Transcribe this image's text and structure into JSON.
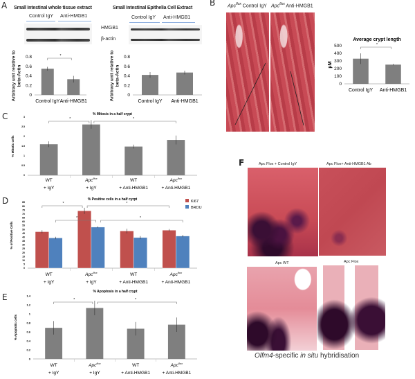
{
  "panels": {
    "A": {
      "label": "A",
      "title_left": "Small Intestinal whole tissue extract",
      "title_right": "Small Intestinal Epithelia Cell Extract",
      "blot_groups": [
        "Control IgY",
        "Anti-HMGB1"
      ],
      "blot_rows": [
        "HMGB1",
        "β-actin"
      ]
    },
    "B": {
      "label": "B",
      "image_titles": [
        {
          "gene": "Apc",
          "superscript": "flox",
          "treatment": "Control IgY"
        },
        {
          "gene": "Apc",
          "superscript": "flox",
          "treatment": "Anti-HMGB1"
        }
      ]
    },
    "C": {
      "label": "C"
    },
    "D": {
      "label": "D"
    },
    "E": {
      "label": "E"
    },
    "F": {
      "label": "F",
      "image_titles": [
        "Apc Flox + Control IgY",
        "Apc Flox+ Anti-HMGB1 Ab",
        "Apc WT",
        "Apc Flox"
      ],
      "caption_gene": "Olfm4",
      "caption_mid": "-specific ",
      "caption_italic": "in situ",
      "caption_end": " hybridisation"
    }
  },
  "colors": {
    "bar_gray": "#7f7f7f",
    "ki67": "#c0504d",
    "brdu": "#4f81bd"
  },
  "chart_data": [
    {
      "type": "bar",
      "panel": "A",
      "title": "",
      "ylabel": "Arbitrary unit relative to beta-Actin",
      "categories": [
        "Control IgY",
        "Anti-HMGB1"
      ],
      "ylim": [
        0,
        0.8
      ],
      "yticks": [
        "0",
        "0.2",
        "0.4",
        "0.6",
        "0.8"
      ],
      "series": [
        {
          "values": [
            0.55,
            0.33
          ],
          "errors": [
            0.04,
            0.07
          ]
        }
      ],
      "significance": [
        {
          "between": [
            0,
            1
          ],
          "marker": "*"
        }
      ],
      "grid": false
    },
    {
      "type": "bar",
      "panel": "A",
      "title": "",
      "ylabel": "Arbitrary unit relative to beta-Actin",
      "categories": [
        "Control IgY",
        "Anti-HMGB1"
      ],
      "ylim": [
        0,
        0.8
      ],
      "yticks": [
        "0",
        "0.2",
        "0.4",
        "0.6",
        "0.8"
      ],
      "series": [
        {
          "values": [
            0.42,
            0.47
          ],
          "errors": [
            0.06,
            0.04
          ]
        }
      ],
      "significance": [],
      "grid": false
    },
    {
      "type": "bar",
      "panel": "B",
      "title": "Average crypt length",
      "ylabel": "μM",
      "categories": [
        "Control IgY",
        "Anti-HMGB1"
      ],
      "ylim": [
        0,
        500
      ],
      "yticks": [
        "0",
        "100",
        "200",
        "300",
        "400",
        "500"
      ],
      "series": [
        {
          "values": [
            330,
            252
          ],
          "errors": [
            70,
            10
          ]
        }
      ],
      "significance": [
        {
          "between": [
            0,
            1
          ],
          "marker": "*"
        }
      ],
      "grid": false
    },
    {
      "type": "bar",
      "panel": "C",
      "title": "% Mitosis in a half crypt",
      "ylabel": "% Mitotic cells",
      "categories": [
        {
          "name": "WT",
          "superscript": "",
          "treatment": "+ IgY"
        },
        {
          "name": "Apc",
          "superscript": "flox",
          "treatment": "+ IgY"
        },
        {
          "name": "WT",
          "superscript": "",
          "treatment": "+ Anti-HMGB1"
        },
        {
          "name": "Apc",
          "superscript": "flox",
          "treatment": "+ Anti-HMGB1"
        }
      ],
      "ylim": [
        0,
        3
      ],
      "yticks": [
        "0",
        "0.5",
        "1",
        "1.5",
        "2",
        "2.5",
        "3"
      ],
      "series": [
        {
          "values": [
            1.6,
            2.62,
            1.48,
            1.82
          ],
          "errors": [
            0.15,
            0.22,
            0.1,
            0.23
          ]
        }
      ],
      "significance": [
        {
          "between": [
            0,
            1
          ],
          "marker": "*"
        },
        {
          "between": [
            1,
            3
          ],
          "marker": "*"
        }
      ],
      "grid": false
    },
    {
      "type": "bar",
      "panel": "D",
      "title": "% Positive cells in a half cyrpt",
      "ylabel": "% of Positive  Cells",
      "categories": [
        {
          "name": "WT",
          "superscript": "",
          "treatment": "+ IgY"
        },
        {
          "name": "Apc",
          "superscript": "flox",
          "treatment": "+ IgY"
        },
        {
          "name": "WT",
          "superscript": "",
          "treatment": "+ Anti-HMGB1"
        },
        {
          "name": "Apc",
          "superscript": "flox",
          "treatment": "+ Anti-HMGB1"
        }
      ],
      "ylim": [
        0,
        85
      ],
      "yticks": [
        "0",
        "5",
        "10",
        "15",
        "20",
        "25",
        "30",
        "35",
        "40",
        "45",
        "50",
        "55",
        "60",
        "65",
        "70",
        "75",
        "80",
        "85"
      ],
      "series": [
        {
          "name": "Ki67",
          "values": [
            47,
            74,
            48,
            49
          ],
          "errors": [
            2,
            4,
            3,
            1.5
          ]
        },
        {
          "name": "BRDU",
          "values": [
            39,
            53,
            39.5,
            41.5
          ],
          "errors": [
            1.5,
            1,
            2,
            1.5
          ]
        }
      ],
      "significance": [
        {
          "series": 0,
          "between": [
            0,
            1
          ],
          "marker": "*"
        },
        {
          "series": 0,
          "between": [
            1,
            3
          ],
          "marker": "*"
        },
        {
          "series": 1,
          "between": [
            0,
            1
          ],
          "marker": "*"
        },
        {
          "series": 1,
          "between": [
            1,
            3
          ],
          "marker": "*"
        }
      ],
      "legend": "top-right",
      "grid": false
    },
    {
      "type": "bar",
      "panel": "E",
      "title": "% Apoptosis in a half crypt",
      "ylabel": "% Apoptotic cells",
      "categories": [
        {
          "name": "WT",
          "superscript": "",
          "treatment": "+ IgY"
        },
        {
          "name": "Apc",
          "superscript": "flox",
          "treatment": "+ IgY"
        },
        {
          "name": "WT",
          "superscript": "",
          "treatment": "+ Anti-HMGB1"
        },
        {
          "name": "Apc",
          "superscript": "flox",
          "treatment": "+ Anti-HMGB1"
        }
      ],
      "ylim": [
        0,
        1.4
      ],
      "yticks": [
        "0",
        "0.2",
        "0.4",
        "0.6",
        "0.8",
        "1",
        "1.2",
        "1.4"
      ],
      "series": [
        {
          "values": [
            0.69,
            1.13,
            0.67,
            0.76
          ],
          "errors": [
            0.15,
            0.16,
            0.15,
            0.16
          ]
        }
      ],
      "significance": [
        {
          "between": [
            0,
            1
          ],
          "marker": "*"
        },
        {
          "between": [
            1,
            3
          ],
          "marker": "*"
        }
      ],
      "grid": false
    }
  ]
}
